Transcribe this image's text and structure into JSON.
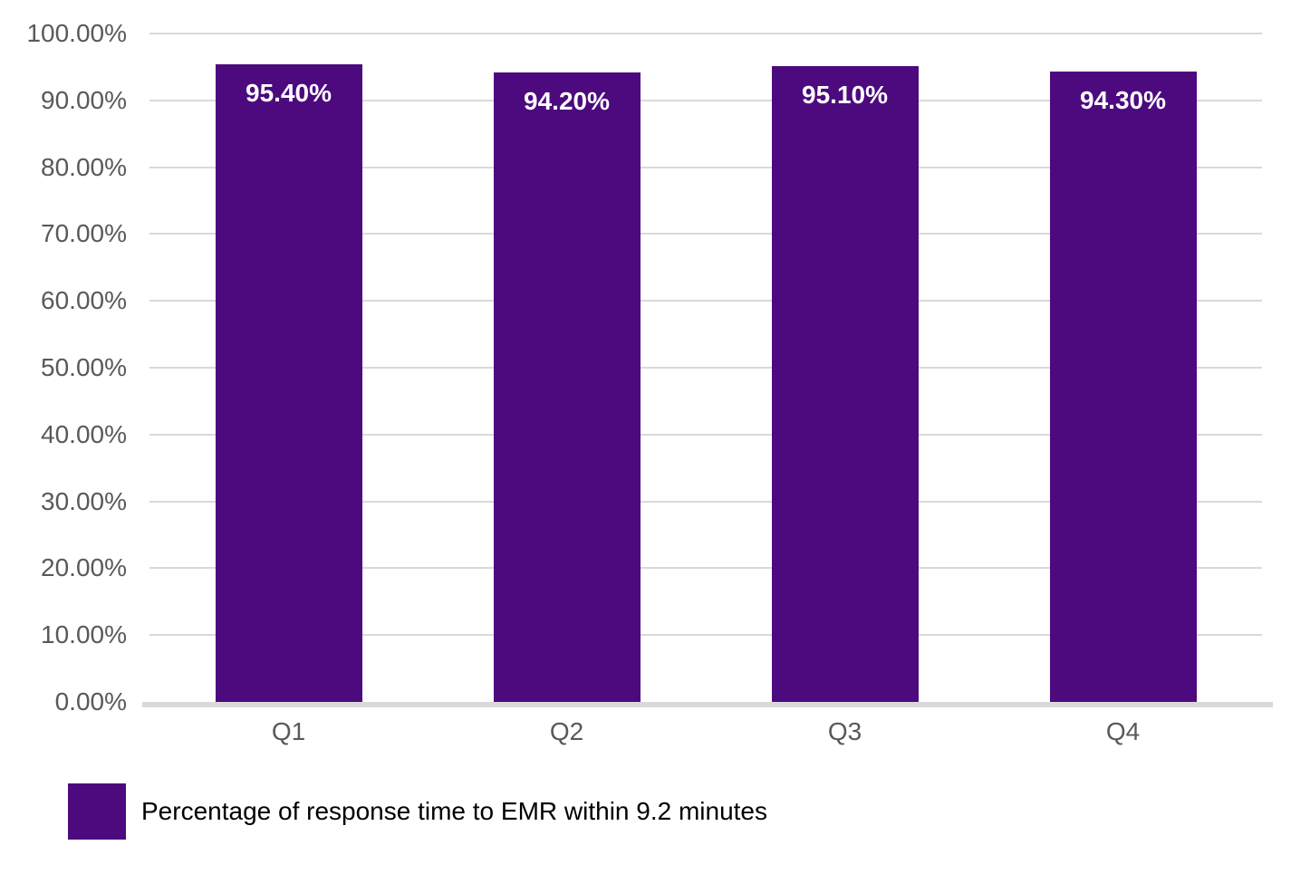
{
  "chart_data": {
    "type": "bar",
    "title": "",
    "categories": [
      "Q1",
      "Q2",
      "Q3",
      "Q4"
    ],
    "series": [
      {
        "name": "Percentage of response time to EMR within 9.2 minutes",
        "values": [
          95.4,
          94.2,
          95.1,
          94.3
        ],
        "data_labels": [
          "95.40%",
          "94.20%",
          "95.10%",
          "94.30%"
        ]
      }
    ],
    "xlabel": "",
    "ylabel": "",
    "ylim": [
      0,
      100
    ],
    "yticks": [
      0,
      10,
      20,
      30,
      40,
      50,
      60,
      70,
      80,
      90,
      100
    ],
    "ytick_labels": [
      "0.00%",
      "10.00%",
      "20.00%",
      "30.00%",
      "40.00%",
      "50.00%",
      "60.00%",
      "70.00%",
      "80.00%",
      "90.00%",
      "100.00%"
    ],
    "grid": true,
    "legend_position": "bottom-left",
    "legend_entries": [
      "Percentage of response time to EMR within 9.2 minutes"
    ],
    "colors": {
      "bar": "#4c0a7e",
      "gridline": "#d9d9d9",
      "axis_line": "#d9d9d9",
      "tick_label_text": "#595959",
      "bar_label_text": "#ffffff",
      "legend_text": "#000000",
      "background": "#ffffff"
    }
  }
}
